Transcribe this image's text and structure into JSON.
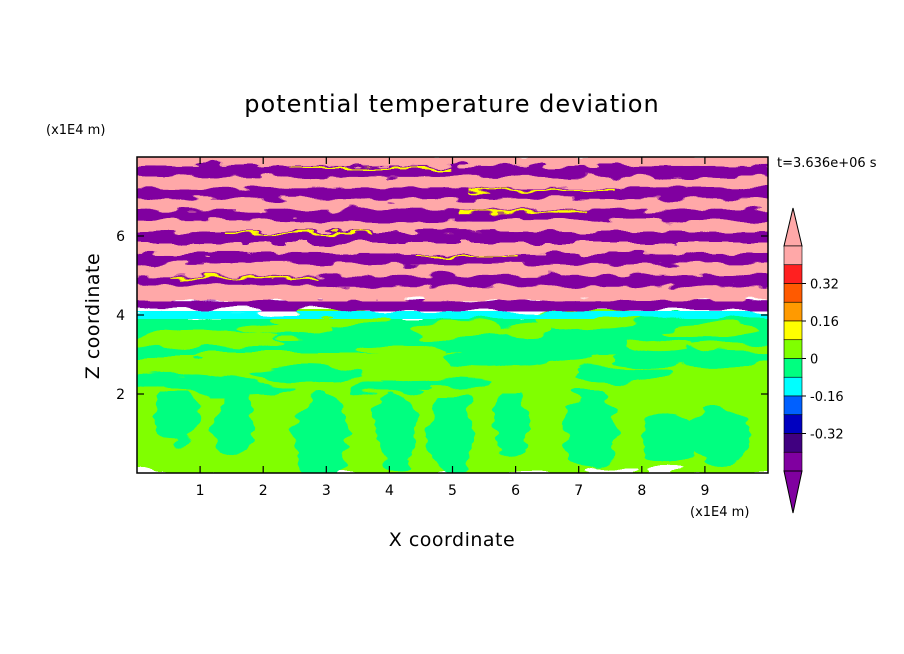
{
  "chart_data": {
    "type": "heatmap",
    "title": "potential temperature deviation",
    "xlabel": "X coordinate",
    "ylabel": "Z coordinate",
    "x_unit": "(x1E4 m)",
    "y_unit": "(x1E4 m)",
    "time_label": "t=3.636e+06 s",
    "xlim": [
      0,
      10
    ],
    "ylim": [
      0,
      8
    ],
    "x_ticks": [
      1,
      2,
      3,
      4,
      5,
      6,
      7,
      8,
      9
    ],
    "y_ticks": [
      2,
      4,
      6
    ],
    "colorbar": {
      "levels": [
        -0.48,
        -0.4,
        -0.32,
        -0.24,
        -0.16,
        -0.08,
        0,
        0.08,
        0.16,
        0.24,
        0.32,
        0.4,
        0.48
      ],
      "colors": [
        "#ffa8a8",
        "#ff2020",
        "#ff5a00",
        "#ff9a00",
        "#ffff00",
        "#80ff00",
        "#00ff80",
        "#00ffff",
        "#0060ff",
        "#0000c0",
        "#400080",
        "#8000a0"
      ],
      "tick_labels": [
        "0.32",
        "0.16",
        "0",
        "-0.16",
        "-0.32"
      ],
      "tick_values": [
        0.32,
        0.16,
        0,
        -0.16,
        -0.32
      ],
      "extend": "both",
      "top_extension_color": "#ffa8a8",
      "bottom_extension_color": "#8000a0"
    },
    "field_regions": [
      {
        "z": [
          0,
          2.0
        ],
        "dominant_value": 0.04,
        "secondary_value": -0.04,
        "pattern": "plumes"
      },
      {
        "z": [
          2.0,
          3.0
        ],
        "dominant_value": 0.04,
        "secondary_value": -0.04,
        "pattern": "mixed"
      },
      {
        "z": [
          3.0,
          4.0
        ],
        "dominant_value": -0.04,
        "secondary_value": 0.04,
        "pattern": "layered"
      },
      {
        "z": [
          3.9,
          4.1
        ],
        "dominant_value": -0.12,
        "pattern": "band"
      },
      {
        "z": [
          4.1,
          4.4
        ],
        "dominant_value": -0.44,
        "pattern": "band"
      },
      {
        "z": [
          4.4,
          8.0
        ],
        "alternating_values": [
          0.44,
          -0.44
        ],
        "pattern": "stripes"
      }
    ]
  }
}
